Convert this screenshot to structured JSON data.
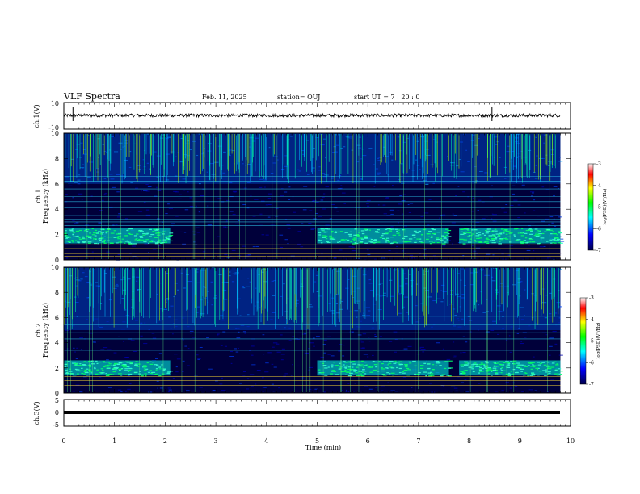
{
  "header": {
    "title": "VLF Spectra",
    "date": "Feb. 11, 2025",
    "station": "station= OUJ",
    "start": "start  UT =   7 : 20 : 0"
  },
  "colors": {
    "background": "#000033",
    "spectrum_ramp": [
      "#00004a",
      "#0000ff",
      "#00ffff",
      "#00ff00",
      "#ffff00",
      "#ff0000",
      "#ffffff"
    ]
  },
  "chart_data": [
    {
      "type": "line",
      "panel": "ch1-waveform",
      "ylabel": "ch.1(V)",
      "y_ticks": [
        "10",
        "-10"
      ],
      "ylim": [
        -10,
        10
      ],
      "xlim": [
        0,
        9.8
      ],
      "baseline": 0,
      "description_values": {
        "typical_amplitude": 2.5,
        "spikes_at_min": [
          0.18,
          8.45
        ]
      }
    },
    {
      "type": "heatmap",
      "panel": "ch1-spectrogram",
      "ylabel_line1": "ch.1",
      "ylabel_line2": "Frequency  (kHz)",
      "y_ticks": [
        "0",
        "2",
        "4",
        "6",
        "8",
        "10"
      ],
      "ylim": [
        0,
        10
      ],
      "xlim": [
        0,
        9.8
      ],
      "colorbar": {
        "label": "log(PSD)(V²/Hz)",
        "ticks": [
          "-3",
          "-4",
          "-5",
          "-6",
          "-7"
        ],
        "range": [
          -7,
          -3
        ]
      },
      "features": {
        "hiss_band_khz": [
          1.3,
          2.5
        ],
        "hiss_intervals_min": [
          [
            0,
            2.1
          ],
          [
            5.0,
            7.6
          ],
          [
            7.8,
            9.8
          ]
        ],
        "sferic_band_khz": [
          6,
          10
        ],
        "lines_khz": [
          0.3,
          0.5,
          0.9,
          1.2,
          2.7,
          3.0,
          3.2,
          3.5,
          4.1,
          4.6,
          5.0,
          5.6,
          6.2,
          6.6
        ]
      }
    },
    {
      "type": "heatmap",
      "panel": "ch2-spectrogram",
      "ylabel_line1": "ch.2",
      "ylabel_line2": "Frequency  (kHz)",
      "y_ticks": [
        "0",
        "2",
        "4",
        "6",
        "8",
        "10"
      ],
      "ylim": [
        0,
        10
      ],
      "xlim": [
        0,
        9.8
      ],
      "colorbar": {
        "label": "log(PSD)(V²/Hz)",
        "ticks": [
          "-3",
          "-4",
          "-5",
          "-6",
          "-7"
        ],
        "range": [
          -7,
          -3
        ]
      },
      "features": {
        "hiss_band_khz": [
          1.4,
          2.6
        ],
        "hiss_intervals_min": [
          [
            0,
            2.1
          ],
          [
            5.0,
            7.6
          ],
          [
            7.8,
            9.8
          ]
        ],
        "sferic_band_khz": [
          5,
          10
        ],
        "lines_khz": [
          0.6,
          1.0,
          1.3,
          2.8,
          3.4,
          3.8,
          4.3,
          4.8,
          5.4,
          6.1
        ]
      }
    },
    {
      "type": "line",
      "panel": "ch3-waveform",
      "ylabel": "ch.3(V)",
      "y_ticks": [
        "5",
        "0",
        "-5"
      ],
      "ylim": [
        -5,
        5
      ],
      "xlim": [
        0,
        9.8
      ],
      "baseline": 0,
      "description_values": {
        "typical_amplitude": 0.15
      }
    }
  ],
  "time_axis": {
    "xlabel": "Time  (min)",
    "ticks": [
      "0",
      "1",
      "2",
      "3",
      "4",
      "5",
      "6",
      "7",
      "8",
      "9",
      "10"
    ],
    "xlim": [
      0,
      10
    ]
  }
}
